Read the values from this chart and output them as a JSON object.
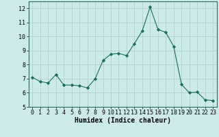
{
  "x": [
    0,
    1,
    2,
    3,
    4,
    5,
    6,
    7,
    8,
    9,
    10,
    11,
    12,
    13,
    14,
    15,
    16,
    17,
    18,
    19,
    20,
    21,
    22,
    23
  ],
  "y": [
    7.1,
    6.8,
    6.7,
    7.3,
    6.55,
    6.55,
    6.5,
    6.35,
    7.0,
    8.3,
    8.75,
    8.8,
    8.65,
    9.5,
    10.4,
    12.1,
    10.5,
    10.3,
    9.3,
    6.6,
    6.0,
    6.05,
    5.5,
    5.45
  ],
  "xlabel": "Humidex (Indice chaleur)",
  "xlim": [
    -0.5,
    23.5
  ],
  "ylim": [
    5,
    12.5
  ],
  "yticks": [
    5,
    6,
    7,
    8,
    9,
    10,
    11,
    12
  ],
  "xticks": [
    0,
    1,
    2,
    3,
    4,
    5,
    6,
    7,
    8,
    9,
    10,
    11,
    12,
    13,
    14,
    15,
    16,
    17,
    18,
    19,
    20,
    21,
    22,
    23
  ],
  "line_color": "#1a6b5a",
  "marker": "D",
  "marker_size": 2.2,
  "bg_color": "#cceaea",
  "grid_color": "#b0c8c8",
  "xlabel_fontsize": 7,
  "tick_fontsize": 6
}
